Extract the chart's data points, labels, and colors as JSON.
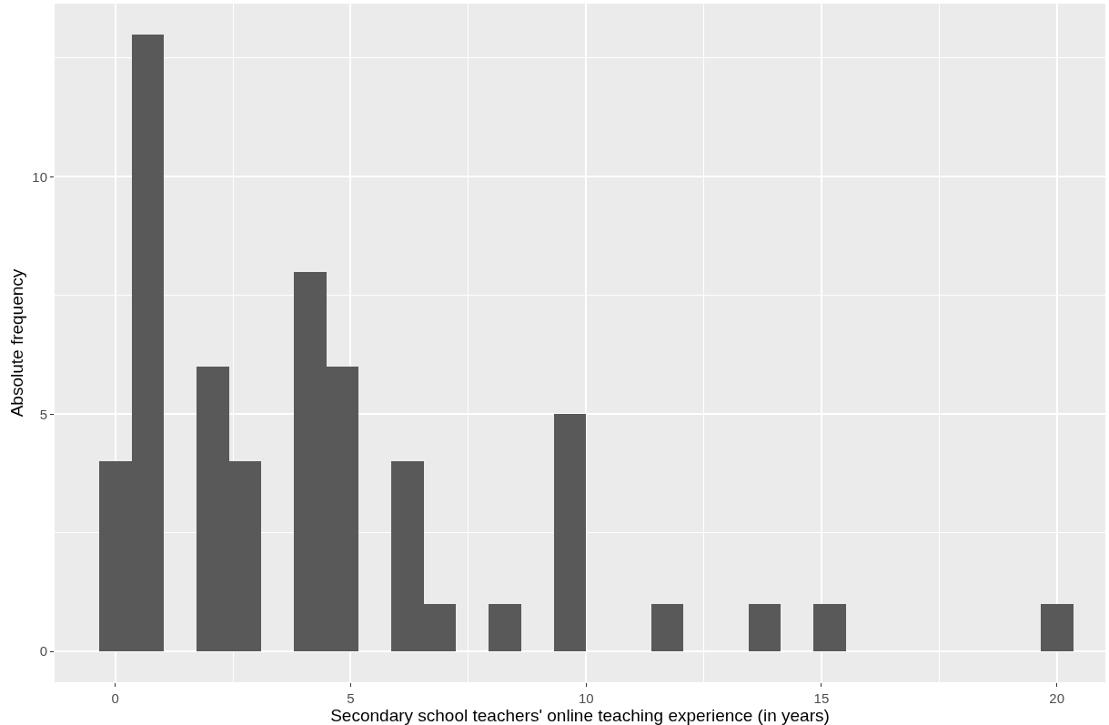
{
  "chart_data": {
    "type": "histogram",
    "xlabel": "Secondary school teachers' online teaching experience (in years)",
    "ylabel": "Absolute frequency",
    "bins": [
      -0.345,
      0.345,
      1.034,
      1.724,
      2.414,
      3.103,
      3.793,
      4.483,
      5.172,
      5.862,
      6.552,
      7.241,
      7.931,
      8.621,
      9.31,
      10.0,
      10.69,
      11.379,
      12.069,
      12.759,
      13.448,
      14.138,
      14.828,
      15.517,
      16.207,
      16.897,
      17.586,
      18.276,
      18.966,
      19.655,
      20.345
    ],
    "values": [
      4,
      13,
      0,
      6,
      4,
      0,
      8,
      6,
      0,
      4,
      1,
      0,
      1,
      0,
      5,
      0,
      0,
      1,
      0,
      0,
      1,
      0,
      1,
      0,
      0,
      0,
      0,
      0,
      0,
      1
    ],
    "color": "#595959",
    "xlim": [
      -1.29,
      21.03
    ],
    "xticks": [
      0,
      5,
      10,
      15,
      20
    ],
    "ylim": [
      -0.65,
      13.65
    ],
    "yticks": [
      0,
      5,
      10
    ],
    "grid": true
  }
}
